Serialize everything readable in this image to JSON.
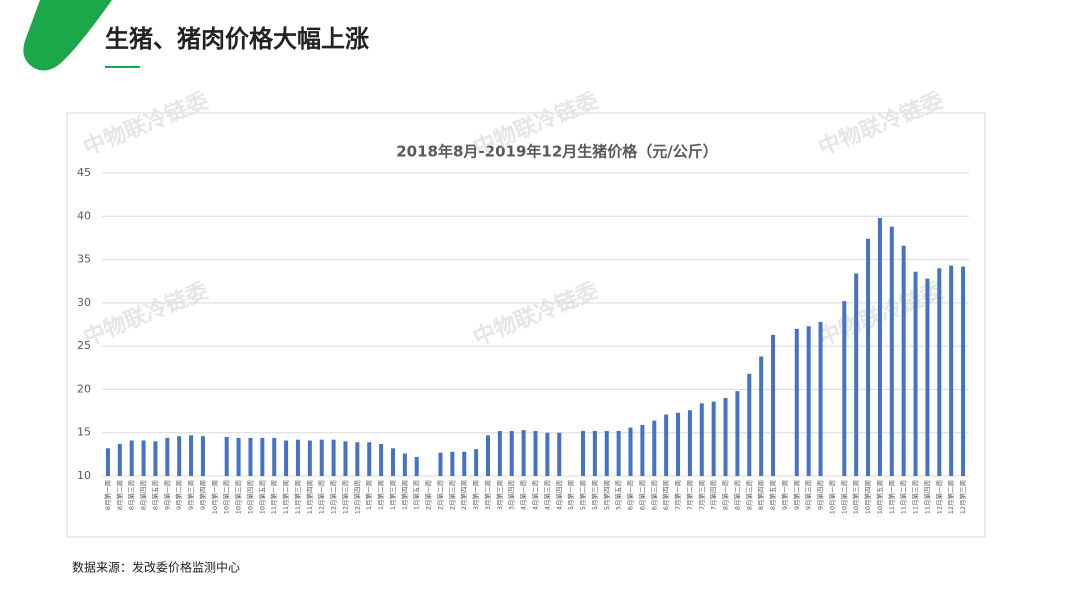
{
  "header": {
    "title": "生猪、猪肉价格大幅上涨"
  },
  "watermark": "中物联冷链委",
  "source": "数据来源：发改委价格监测中心",
  "chart_data": {
    "type": "bar",
    "title": "2018年8月-2019年12月生猪价格（元/公斤）",
    "color": "#4472c4",
    "grid": true,
    "ylim": [
      10,
      45
    ],
    "yticks": [
      10,
      15,
      20,
      25,
      30,
      35,
      40,
      45
    ],
    "categories": [
      "8月第一周",
      "8月第二周",
      "8月第三周",
      "8月第四周",
      "8月第五周",
      "9月第一周",
      "9月第二周",
      "9月第三周",
      "9月第四周",
      "10月第一周",
      "10月第二周",
      "10月第三周",
      "10月第四周",
      "10月第五周",
      "11月第一周",
      "11月第二周",
      "11月第三周",
      "11月第四周",
      "12月第一周",
      "12月第二周",
      "12月第三周",
      "12月第四周",
      "1月第一周",
      "1月第二周",
      "1月第三周",
      "1月第四周",
      "1月第五周",
      "2月第一周",
      "2月第二周",
      "2月第三周",
      "2月第四周",
      "3月第一周",
      "3月第二周",
      "3月第三周",
      "3月第四周",
      "4月第一周",
      "4月第二周",
      "4月第三周",
      "4月第四周",
      "5月第一周",
      "5月第二周",
      "5月第三周",
      "5月第四周",
      "5月第五周",
      "6月第一周",
      "6月第二周",
      "6月第三周",
      "6月第四周",
      "7月第一周",
      "7月第二周",
      "7月第三周",
      "7月第四周",
      "8月第一周",
      "8月第二周",
      "8月第三周",
      "8月第四周",
      "8月第五周",
      "9月第一周",
      "9月第二周",
      "9月第三周",
      "9月第四周",
      "10月第一周",
      "10月第二周",
      "10月第三周",
      "10月第四周",
      "10月第五周",
      "11月第一周",
      "11月第二周",
      "11月第三周",
      "11月第四周",
      "12月第一周",
      "12月第二周",
      "12月第三周"
    ],
    "values": [
      13.2,
      13.7,
      14.1,
      14.1,
      14.0,
      14.4,
      14.6,
      14.7,
      14.6,
      null,
      14.5,
      14.4,
      14.4,
      14.4,
      14.4,
      14.1,
      14.2,
      14.1,
      14.2,
      14.2,
      14.0,
      13.9,
      13.9,
      13.7,
      13.2,
      12.6,
      12.2,
      null,
      12.7,
      12.8,
      12.8,
      13.1,
      14.7,
      15.2,
      15.2,
      15.3,
      15.2,
      15.0,
      15.0,
      null,
      15.2,
      15.2,
      15.2,
      15.2,
      15.6,
      15.9,
      16.4,
      17.1,
      17.3,
      17.6,
      18.4,
      18.6,
      19.0,
      19.8,
      21.8,
      23.8,
      26.3,
      null,
      27.0,
      27.3,
      27.8,
      null,
      30.2,
      33.4,
      37.4,
      39.8,
      38.8,
      36.6,
      33.6,
      32.8,
      34.0,
      34.3,
      34.2
    ]
  }
}
